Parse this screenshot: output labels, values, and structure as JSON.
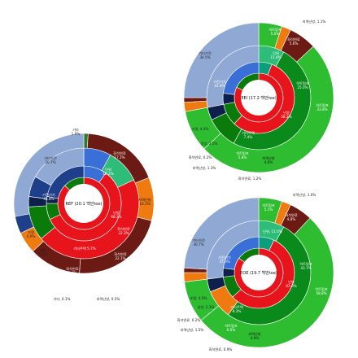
{
  "chart_data": [
    {
      "type": "sunburst",
      "center_label": "REF (20.1 백만toe)",
      "inner_ring": [
        {
          "label": "건물",
          "value": 89.6,
          "display": "",
          "color": "#3a6fd8"
        },
        {
          "label": "냉방",
          "value": 9.1,
          "display": "냉방\n9.1%",
          "color": "#1e3f8a"
        },
        {
          "label": "조명",
          "value": 4.0,
          "display": "조명\n4.0%",
          "color": "#0d1f4a"
        }
      ],
      "middle_ring": [
        {
          "label": "기타가전",
          "value": 43.8,
          "display": "가전기기\n43.8%",
          "color": "#8fa9d4"
        },
        {
          "label": "난방",
          "value": 68.2,
          "display": "난방\n68.2%",
          "color": "#e8141c"
        },
        {
          "label": "기타주택",
          "value": 5.7,
          "display": "기타주택 5.7%",
          "color": "#0a7a0a"
        },
        {
          "label": "화석연료",
          "value": 5.4,
          "display": "화석연료\n5.4%",
          "color": "#6b1a14"
        }
      ],
      "outer_ring": [
        {
          "label": "기타",
          "value": 1.0,
          "display": "기타\n1.0%",
          "color": "#2a7a2a"
        },
        {
          "label": "화석연료",
          "value": 17.2,
          "display": "화석연료\n17.2%",
          "color": "#6b1a14"
        },
        {
          "label": "지역난방",
          "value": 10.1,
          "display": "지역난방\n10.1%",
          "color": "#ee7a10"
        },
        {
          "label": "화석연료",
          "value": 22.1,
          "display": "화석연료\n22.1%",
          "color": "#6b1a14"
        }
      ],
      "outer_labels": [
        {
          "text": "기타가전\n30.7%",
          "pos": "left"
        },
        {
          "text": "기타, 0.1%",
          "pos": "bottom-left"
        },
        {
          "text": "지역난방, 0.2%",
          "pos": "bottom"
        },
        {
          "text": "단위\n18.2%",
          "pos": "inner"
        },
        {
          "text": "지역난방\n10.1%",
          "pos": "right"
        },
        {
          "text": "화석연료\n32.3%",
          "pos": "right-mid"
        }
      ]
    },
    {
      "type": "sunburst",
      "center_label": "EEI (17.2 백만toe)",
      "legend_texts": [
        "지역난방, 1.1%",
        "히트펌프\n5.0%",
        "화석연료\n5.6%",
        "지역난방, 1.3%",
        "화석연료, 0.2%",
        "화석연료, 1.2%",
        "조명, 4.4%",
        "냉방, 2.5%",
        "기타가전\n34.5%",
        "히트펌프\n33.8%",
        "가전기기\n41.8%",
        "난방\n58.2%",
        "기타주택\n7.4%",
        "히트펌프\n5.8%",
        "지역난방\n4.0%",
        "단위\n11.8%",
        "화석연료\n25.0%"
      ]
    },
    {
      "type": "sunburst",
      "center_label": "EOE (19.7 백만toe)",
      "legend_texts": [
        "지역난방, 1.0%",
        "히트펌프\n5.1%",
        "화석연료\n4.8%",
        "기타가전\n30.7%",
        "가전기기\n37.0%",
        "단위, 11.0%",
        "난방\n63.0%",
        "히트펌프\n43.7%",
        "히트펌프\n58.8%",
        "조명, 4.0%",
        "냉방, 2.3%",
        "기타주택\n8.3%",
        "화석연료, 0.2%",
        "지역난방, 1.5%",
        "히트펌프\n6.6%",
        "지역난방\n4.0%",
        "화석연료, 0.9%"
      ]
    }
  ]
}
